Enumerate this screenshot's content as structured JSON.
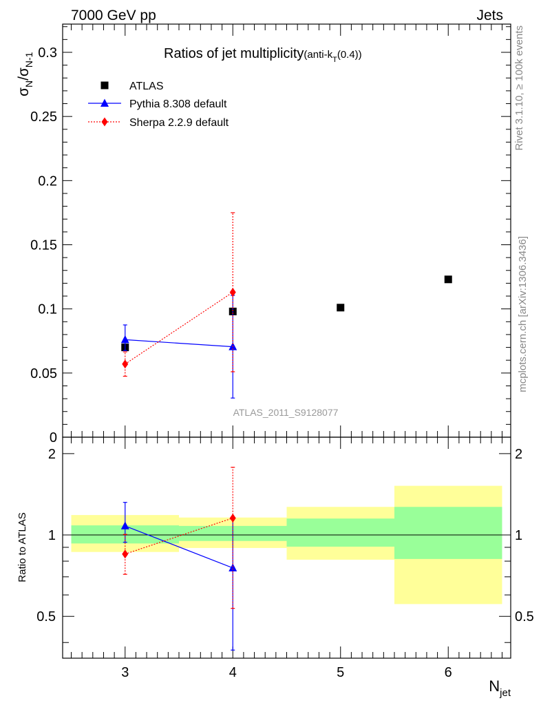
{
  "header": {
    "left": "7000 GeV pp",
    "right": "Jets"
  },
  "side_labels": {
    "rivet": "Rivet 3.1.10, ≥ 100k events",
    "mcplots": "mcplots.cern.ch [arXiv:1306.3436]"
  },
  "chart_data": [
    {
      "type": "scatter",
      "title_main": "Ratios of jet multiplicity",
      "title_suffix_a": "(anti-k",
      "title_suffix_sub": "T",
      "title_suffix_b": "(0.4))",
      "watermark": "ATLAS_2011_S9128077",
      "ylabel_main": "σ",
      "ylabel_sub1": "N",
      "ylabel_mid": "/σ",
      "ylabel_sub2": "N-1",
      "xlim": [
        2.42,
        6.58
      ],
      "ylim": [
        0,
        0.322
      ],
      "yticks": [
        0,
        0.05,
        0.1,
        0.15,
        0.2,
        0.25,
        0.3
      ],
      "ytick_labels": [
        "0",
        "0.05",
        "0.1",
        "0.15",
        "0.2",
        "0.25",
        "0.3"
      ],
      "legend": [
        {
          "label": "ATLAS",
          "color": "#000000",
          "marker": "square"
        },
        {
          "label": "Pythia 8.308 default",
          "color": "#0000ff",
          "marker": "triangle"
        },
        {
          "label": "Sherpa 2.2.9 default",
          "color": "#ff0000",
          "marker": "diamond"
        }
      ],
      "series": [
        {
          "name": "ATLAS",
          "x": [
            3,
            4,
            5,
            6
          ],
          "y": [
            0.07,
            0.098,
            0.101,
            0.123
          ],
          "err": [
            0.002,
            0.002,
            0.002,
            0.002
          ]
        },
        {
          "name": "Pythia 8.308 default",
          "x": [
            3,
            4
          ],
          "y": [
            0.076,
            0.0705
          ],
          "err_low": [
            0.0085,
            0.04
          ],
          "err_high": [
            0.0115,
            0.04
          ]
        },
        {
          "name": "Sherpa 2.2.9 default",
          "x": [
            3,
            4
          ],
          "y": [
            0.057,
            0.113
          ],
          "err_low": [
            0.0095,
            0.062
          ],
          "err_high": [
            0.0095,
            0.062
          ]
        }
      ]
    },
    {
      "type": "scatter",
      "ylabel": "Ratio to ATLAS",
      "xlabel_main": "N",
      "xlabel_sub": "jet",
      "xlim": [
        2.42,
        6.58
      ],
      "ylim": [
        0.35,
        2.3
      ],
      "yscale": "log",
      "yticks": [
        0.5,
        1,
        2
      ],
      "ytick_labels": [
        "0.5",
        "1",
        "2"
      ],
      "xticks": [
        3,
        4,
        5,
        6
      ],
      "xtick_labels": [
        "3",
        "4",
        "5",
        "6"
      ],
      "bands": [
        {
          "x0": 2.5,
          "x1": 3.5,
          "yellow": [
            0.865,
            1.185
          ],
          "green": [
            0.93,
            1.085
          ]
        },
        {
          "x0": 3.5,
          "x1": 4.5,
          "yellow": [
            0.895,
            1.16
          ],
          "green": [
            0.95,
            1.08
          ]
        },
        {
          "x0": 4.5,
          "x1": 5.5,
          "yellow": [
            0.81,
            1.27
          ],
          "green": [
            0.905,
            1.15
          ]
        },
        {
          "x0": 5.5,
          "x1": 6.5,
          "yellow": [
            0.555,
            1.52
          ],
          "green": [
            0.815,
            1.27
          ]
        }
      ],
      "series": [
        {
          "name": "Pythia 8.308 default",
          "x": [
            3,
            4
          ],
          "y": [
            1.08,
            0.755
          ],
          "err_low": [
            0.14,
            0.38
          ],
          "err_high": [
            0.24,
            0.4
          ]
        },
        {
          "name": "Sherpa 2.2.9 default",
          "x": [
            3,
            4
          ],
          "y": [
            0.85,
            1.155
          ],
          "err_low": [
            0.135,
            0.62
          ],
          "err_high": [
            0.155,
            0.625
          ]
        }
      ]
    }
  ]
}
